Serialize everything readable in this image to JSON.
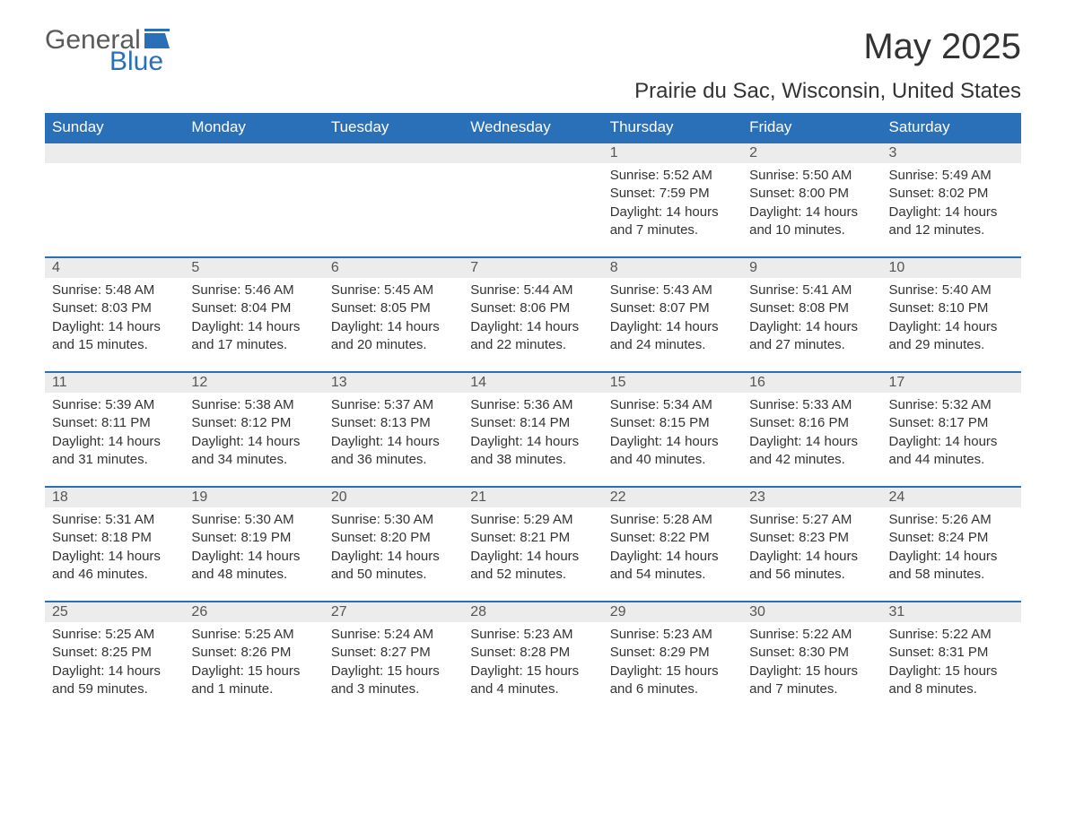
{
  "logo": {
    "part1": "General",
    "part2": "Blue"
  },
  "title": "May 2025",
  "subtitle": "Prairie du Sac, Wisconsin, United States",
  "colors": {
    "header_bg": "#2a70b8",
    "header_text": "#ffffff",
    "daynum_bg": "#ececec",
    "border": "#2a70b8",
    "text": "#333333"
  },
  "weekdays": [
    "Sunday",
    "Monday",
    "Tuesday",
    "Wednesday",
    "Thursday",
    "Friday",
    "Saturday"
  ],
  "weeks": [
    [
      {
        "day": "",
        "sunrise": "",
        "sunset": "",
        "daylight": ""
      },
      {
        "day": "",
        "sunrise": "",
        "sunset": "",
        "daylight": ""
      },
      {
        "day": "",
        "sunrise": "",
        "sunset": "",
        "daylight": ""
      },
      {
        "day": "",
        "sunrise": "",
        "sunset": "",
        "daylight": ""
      },
      {
        "day": "1",
        "sunrise": "Sunrise: 5:52 AM",
        "sunset": "Sunset: 7:59 PM",
        "daylight": "Daylight: 14 hours and 7 minutes."
      },
      {
        "day": "2",
        "sunrise": "Sunrise: 5:50 AM",
        "sunset": "Sunset: 8:00 PM",
        "daylight": "Daylight: 14 hours and 10 minutes."
      },
      {
        "day": "3",
        "sunrise": "Sunrise: 5:49 AM",
        "sunset": "Sunset: 8:02 PM",
        "daylight": "Daylight: 14 hours and 12 minutes."
      }
    ],
    [
      {
        "day": "4",
        "sunrise": "Sunrise: 5:48 AM",
        "sunset": "Sunset: 8:03 PM",
        "daylight": "Daylight: 14 hours and 15 minutes."
      },
      {
        "day": "5",
        "sunrise": "Sunrise: 5:46 AM",
        "sunset": "Sunset: 8:04 PM",
        "daylight": "Daylight: 14 hours and 17 minutes."
      },
      {
        "day": "6",
        "sunrise": "Sunrise: 5:45 AM",
        "sunset": "Sunset: 8:05 PM",
        "daylight": "Daylight: 14 hours and 20 minutes."
      },
      {
        "day": "7",
        "sunrise": "Sunrise: 5:44 AM",
        "sunset": "Sunset: 8:06 PM",
        "daylight": "Daylight: 14 hours and 22 minutes."
      },
      {
        "day": "8",
        "sunrise": "Sunrise: 5:43 AM",
        "sunset": "Sunset: 8:07 PM",
        "daylight": "Daylight: 14 hours and 24 minutes."
      },
      {
        "day": "9",
        "sunrise": "Sunrise: 5:41 AM",
        "sunset": "Sunset: 8:08 PM",
        "daylight": "Daylight: 14 hours and 27 minutes."
      },
      {
        "day": "10",
        "sunrise": "Sunrise: 5:40 AM",
        "sunset": "Sunset: 8:10 PM",
        "daylight": "Daylight: 14 hours and 29 minutes."
      }
    ],
    [
      {
        "day": "11",
        "sunrise": "Sunrise: 5:39 AM",
        "sunset": "Sunset: 8:11 PM",
        "daylight": "Daylight: 14 hours and 31 minutes."
      },
      {
        "day": "12",
        "sunrise": "Sunrise: 5:38 AM",
        "sunset": "Sunset: 8:12 PM",
        "daylight": "Daylight: 14 hours and 34 minutes."
      },
      {
        "day": "13",
        "sunrise": "Sunrise: 5:37 AM",
        "sunset": "Sunset: 8:13 PM",
        "daylight": "Daylight: 14 hours and 36 minutes."
      },
      {
        "day": "14",
        "sunrise": "Sunrise: 5:36 AM",
        "sunset": "Sunset: 8:14 PM",
        "daylight": "Daylight: 14 hours and 38 minutes."
      },
      {
        "day": "15",
        "sunrise": "Sunrise: 5:34 AM",
        "sunset": "Sunset: 8:15 PM",
        "daylight": "Daylight: 14 hours and 40 minutes."
      },
      {
        "day": "16",
        "sunrise": "Sunrise: 5:33 AM",
        "sunset": "Sunset: 8:16 PM",
        "daylight": "Daylight: 14 hours and 42 minutes."
      },
      {
        "day": "17",
        "sunrise": "Sunrise: 5:32 AM",
        "sunset": "Sunset: 8:17 PM",
        "daylight": "Daylight: 14 hours and 44 minutes."
      }
    ],
    [
      {
        "day": "18",
        "sunrise": "Sunrise: 5:31 AM",
        "sunset": "Sunset: 8:18 PM",
        "daylight": "Daylight: 14 hours and 46 minutes."
      },
      {
        "day": "19",
        "sunrise": "Sunrise: 5:30 AM",
        "sunset": "Sunset: 8:19 PM",
        "daylight": "Daylight: 14 hours and 48 minutes."
      },
      {
        "day": "20",
        "sunrise": "Sunrise: 5:30 AM",
        "sunset": "Sunset: 8:20 PM",
        "daylight": "Daylight: 14 hours and 50 minutes."
      },
      {
        "day": "21",
        "sunrise": "Sunrise: 5:29 AM",
        "sunset": "Sunset: 8:21 PM",
        "daylight": "Daylight: 14 hours and 52 minutes."
      },
      {
        "day": "22",
        "sunrise": "Sunrise: 5:28 AM",
        "sunset": "Sunset: 8:22 PM",
        "daylight": "Daylight: 14 hours and 54 minutes."
      },
      {
        "day": "23",
        "sunrise": "Sunrise: 5:27 AM",
        "sunset": "Sunset: 8:23 PM",
        "daylight": "Daylight: 14 hours and 56 minutes."
      },
      {
        "day": "24",
        "sunrise": "Sunrise: 5:26 AM",
        "sunset": "Sunset: 8:24 PM",
        "daylight": "Daylight: 14 hours and 58 minutes."
      }
    ],
    [
      {
        "day": "25",
        "sunrise": "Sunrise: 5:25 AM",
        "sunset": "Sunset: 8:25 PM",
        "daylight": "Daylight: 14 hours and 59 minutes."
      },
      {
        "day": "26",
        "sunrise": "Sunrise: 5:25 AM",
        "sunset": "Sunset: 8:26 PM",
        "daylight": "Daylight: 15 hours and 1 minute."
      },
      {
        "day": "27",
        "sunrise": "Sunrise: 5:24 AM",
        "sunset": "Sunset: 8:27 PM",
        "daylight": "Daylight: 15 hours and 3 minutes."
      },
      {
        "day": "28",
        "sunrise": "Sunrise: 5:23 AM",
        "sunset": "Sunset: 8:28 PM",
        "daylight": "Daylight: 15 hours and 4 minutes."
      },
      {
        "day": "29",
        "sunrise": "Sunrise: 5:23 AM",
        "sunset": "Sunset: 8:29 PM",
        "daylight": "Daylight: 15 hours and 6 minutes."
      },
      {
        "day": "30",
        "sunrise": "Sunrise: 5:22 AM",
        "sunset": "Sunset: 8:30 PM",
        "daylight": "Daylight: 15 hours and 7 minutes."
      },
      {
        "day": "31",
        "sunrise": "Sunrise: 5:22 AM",
        "sunset": "Sunset: 8:31 PM",
        "daylight": "Daylight: 15 hours and 8 minutes."
      }
    ]
  ]
}
